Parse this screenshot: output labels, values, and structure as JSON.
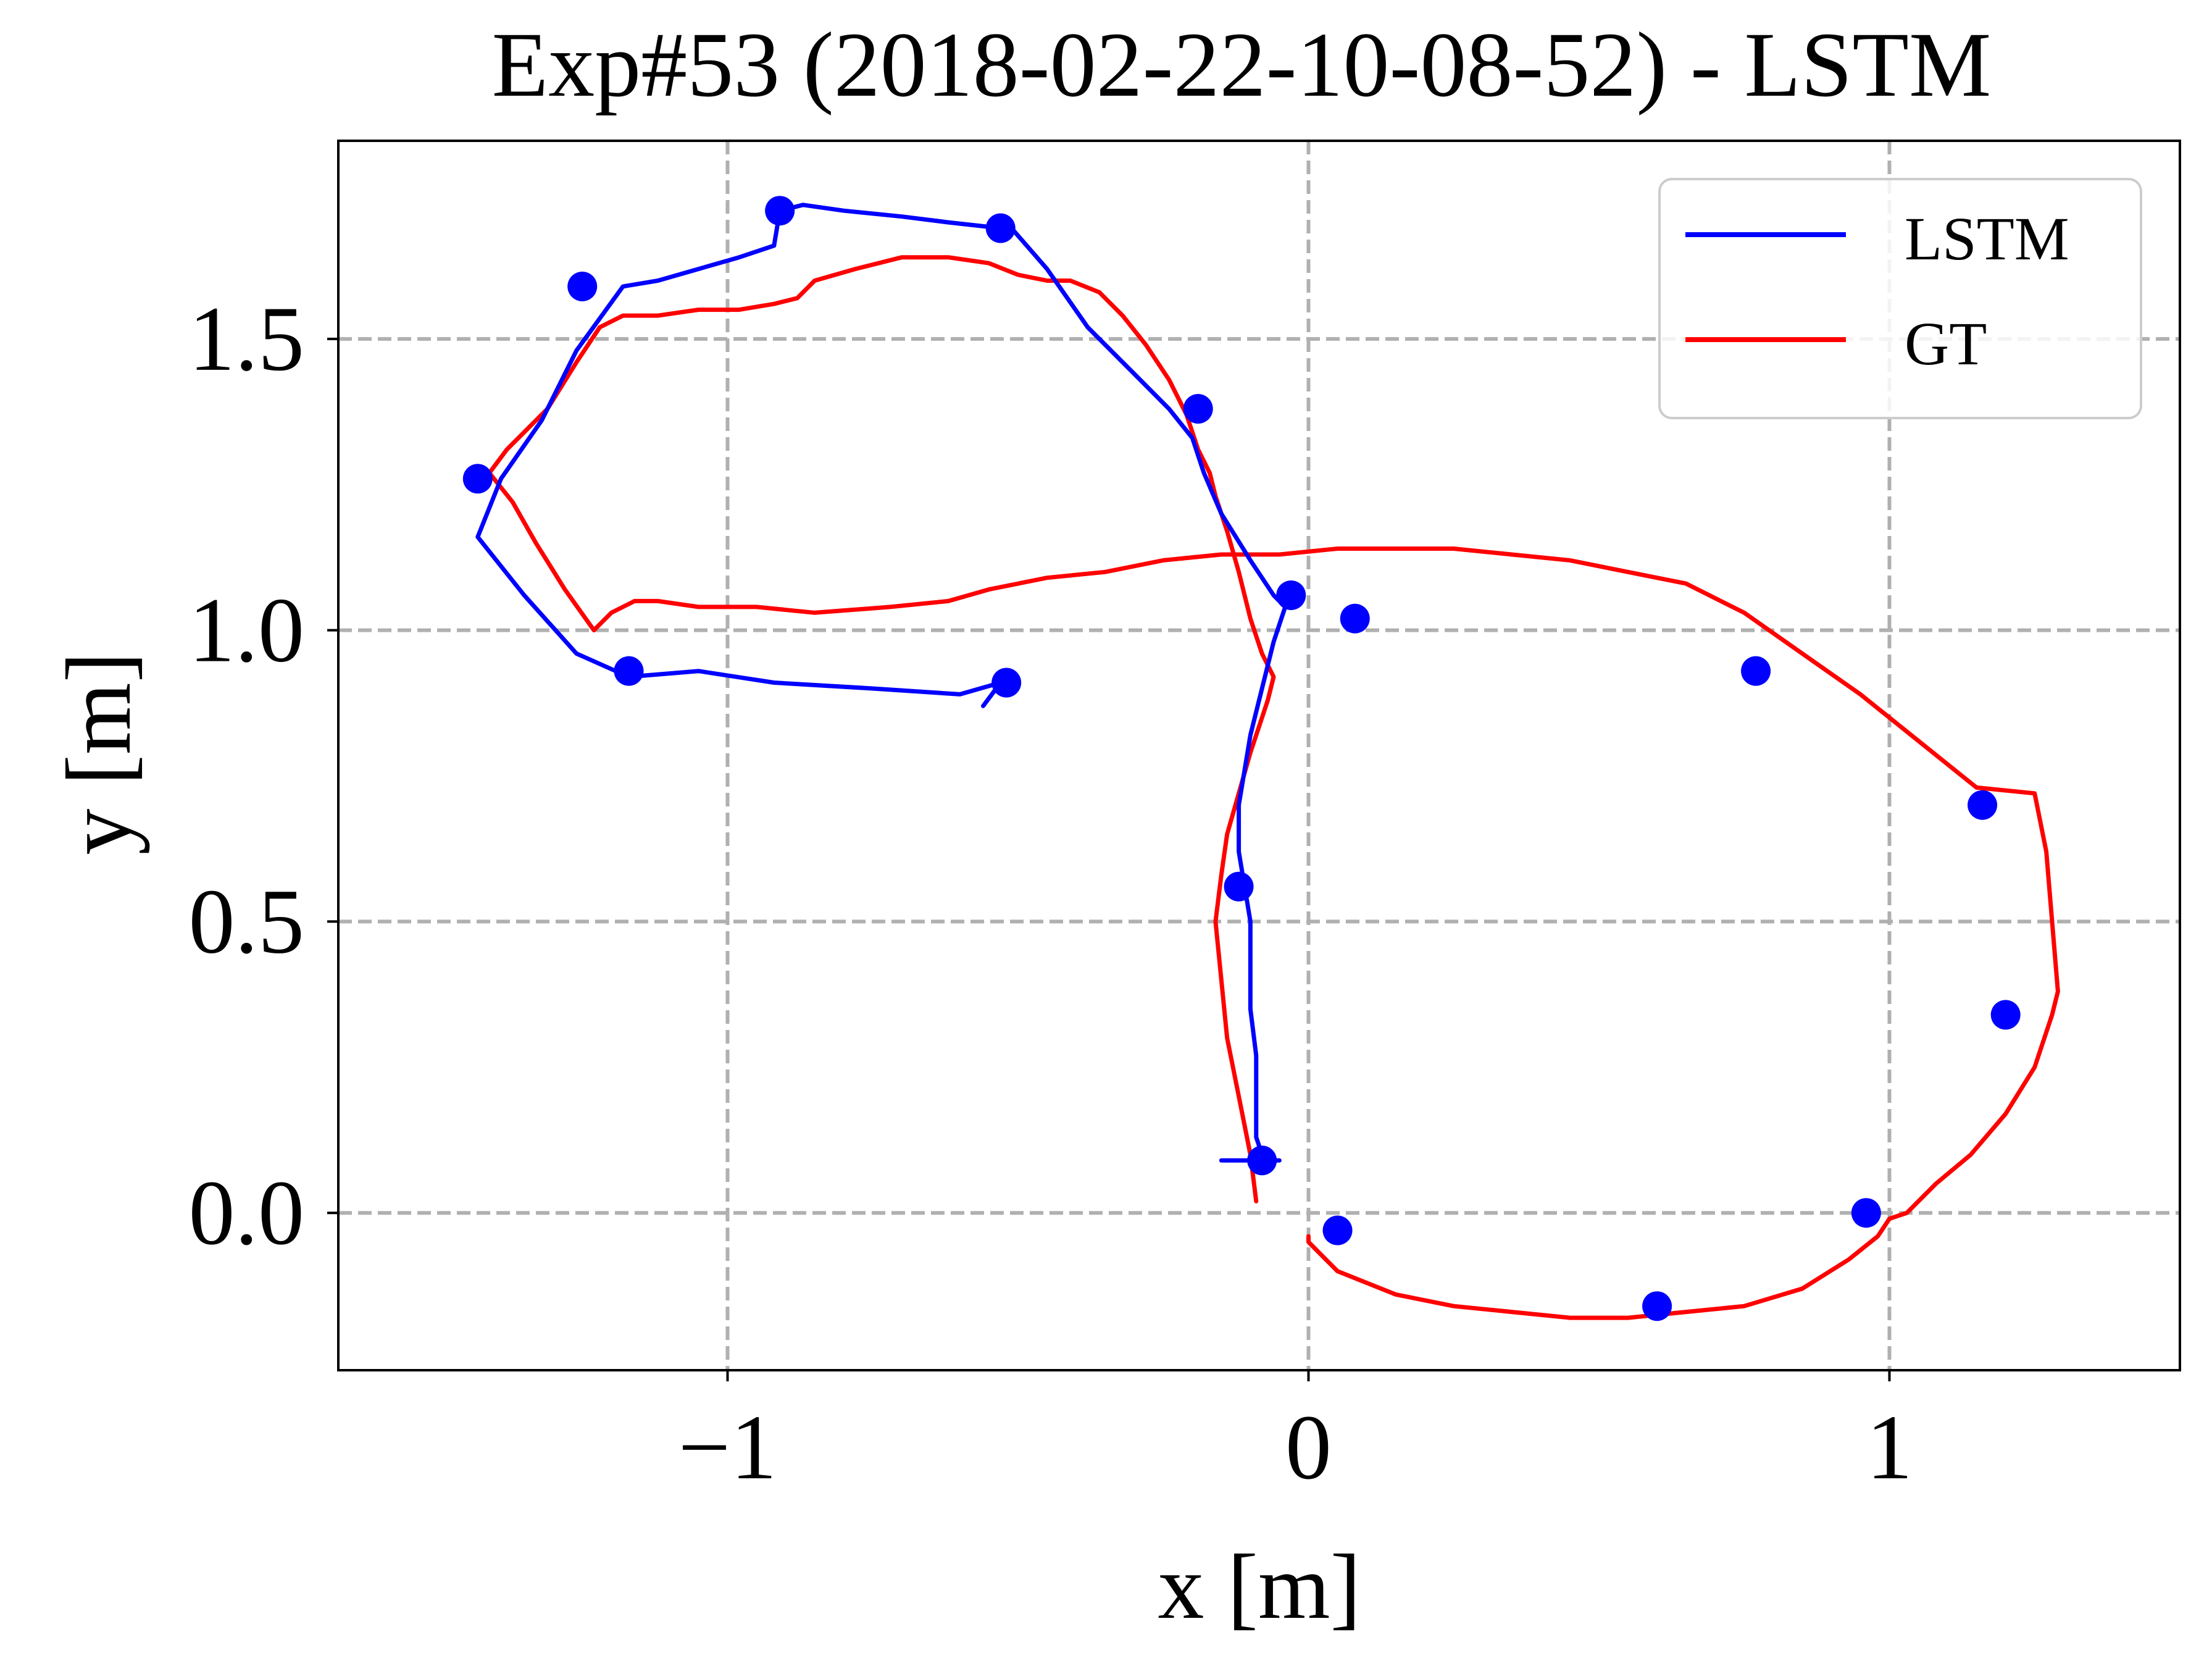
{
  "chart_data": {
    "type": "line",
    "title": "Exp#53 (2018-02-22-10-08-52) - LSTM",
    "xlabel": "x [m]",
    "ylabel": "y [m]",
    "xlim": [
      -1.67,
      1.5
    ],
    "ylim": [
      -0.27,
      1.84
    ],
    "xticks": [
      {
        "value": -1,
        "label": "−1"
      },
      {
        "value": 0,
        "label": "0"
      },
      {
        "value": 1,
        "label": "1"
      }
    ],
    "yticks": [
      {
        "value": 0.0,
        "label": "0.0"
      },
      {
        "value": 0.5,
        "label": "0.5"
      },
      {
        "value": 1.0,
        "label": "1.0"
      },
      {
        "value": 1.5,
        "label": "1.5"
      }
    ],
    "grid": true,
    "legend_position": "top-right",
    "colors": {
      "lstm": "#0000ff",
      "gt": "#ff0000",
      "grid": "#b0b0b0"
    },
    "series": [
      {
        "name": "LSTM",
        "color": "#0000ff",
        "x": [
          -0.56,
          -0.53,
          -0.6,
          -0.75,
          -0.92,
          -1.05,
          -1.17,
          -1.26,
          -1.35,
          -1.43,
          -1.39,
          -1.32,
          -1.26,
          -1.18,
          -1.12,
          -1.05,
          -0.98,
          -0.92,
          -0.91,
          -0.87,
          -0.8,
          -0.7,
          -0.62,
          -0.53,
          -0.52,
          -0.45,
          -0.38,
          -0.3,
          -0.24,
          -0.2,
          -0.18,
          -0.15,
          -0.1,
          -0.06,
          -0.04,
          -0.06,
          -0.08,
          -0.1,
          -0.11,
          -0.12,
          -0.12,
          -0.11,
          -0.1,
          -0.1,
          -0.1,
          -0.09,
          -0.09,
          -0.09,
          -0.08,
          -0.08,
          -0.09,
          -0.1,
          -0.11,
          -0.12,
          -0.13,
          -0.14,
          -0.15,
          -0.15,
          -0.14,
          -0.12,
          -0.1,
          -0.07,
          -0.06,
          -0.05,
          -0.06,
          -0.07,
          -0.08
        ],
        "y": [
          0.87,
          0.91,
          0.89,
          0.9,
          0.91,
          0.93,
          0.92,
          0.96,
          1.06,
          1.16,
          1.26,
          1.36,
          1.48,
          1.59,
          1.6,
          1.62,
          1.64,
          1.66,
          1.72,
          1.73,
          1.72,
          1.71,
          1.7,
          1.69,
          1.7,
          1.62,
          1.52,
          1.44,
          1.38,
          1.33,
          1.27,
          1.2,
          1.12,
          1.06,
          1.04,
          0.98,
          0.9,
          0.82,
          0.76,
          0.7,
          0.62,
          0.56,
          0.5,
          0.42,
          0.35,
          0.27,
          0.2,
          0.13,
          0.1,
          0.09,
          0.09,
          0.09,
          0.09,
          0.09,
          0.09,
          0.09,
          0.09,
          0.09,
          0.09,
          0.09,
          0.09,
          0.09,
          0.09,
          0.09,
          0.09,
          0.09,
          0.09
        ]
      },
      {
        "name": "GT",
        "color": "#ff0000",
        "x": [
          -0.09,
          -0.1,
          -0.12,
          -0.14,
          -0.15,
          -0.16,
          -0.15,
          -0.14,
          -0.12,
          -0.1,
          -0.08,
          -0.07,
          -0.06,
          -0.08,
          -0.1,
          -0.12,
          -0.14,
          -0.16,
          -0.17,
          -0.19,
          -0.21,
          -0.24,
          -0.28,
          -0.32,
          -0.36,
          -0.41,
          -0.45,
          -0.5,
          -0.55,
          -0.62,
          -0.7,
          -0.78,
          -0.85,
          -0.88,
          -0.92,
          -0.98,
          -1.05,
          -1.12,
          -1.18,
          -1.22,
          -1.26,
          -1.31,
          -1.38,
          -1.41,
          -1.37,
          -1.33,
          -1.28,
          -1.23,
          -1.2,
          -1.16,
          -1.12,
          -1.05,
          -0.95,
          -0.85,
          -0.72,
          -0.62,
          -0.55,
          -0.45,
          -0.35,
          -0.25,
          -0.15,
          -0.05,
          0.05,
          0.15,
          0.25,
          0.35,
          0.45,
          0.55,
          0.65,
          0.75,
          0.85,
          0.95,
          1.05,
          1.15,
          1.25,
          1.27,
          1.28,
          1.29,
          1.28,
          1.25,
          1.2,
          1.14,
          1.08,
          1.03,
          1.0,
          0.98,
          0.93,
          0.85,
          0.75,
          0.65,
          0.55,
          0.45,
          0.35,
          0.25,
          0.15,
          0.05,
          0.0,
          0.0
        ],
        "y": [
          0.02,
          0.1,
          0.2,
          0.3,
          0.4,
          0.5,
          0.58,
          0.65,
          0.72,
          0.79,
          0.85,
          0.88,
          0.92,
          0.96,
          1.02,
          1.1,
          1.17,
          1.23,
          1.27,
          1.31,
          1.37,
          1.43,
          1.49,
          1.54,
          1.58,
          1.6,
          1.6,
          1.61,
          1.63,
          1.64,
          1.64,
          1.62,
          1.6,
          1.57,
          1.56,
          1.55,
          1.55,
          1.54,
          1.54,
          1.52,
          1.46,
          1.38,
          1.31,
          1.27,
          1.22,
          1.15,
          1.07,
          1.0,
          1.03,
          1.05,
          1.05,
          1.04,
          1.04,
          1.03,
          1.04,
          1.05,
          1.07,
          1.09,
          1.1,
          1.12,
          1.13,
          1.13,
          1.14,
          1.14,
          1.14,
          1.13,
          1.12,
          1.1,
          1.08,
          1.03,
          0.96,
          0.89,
          0.81,
          0.73,
          0.72,
          0.62,
          0.5,
          0.38,
          0.34,
          0.25,
          0.17,
          0.1,
          0.05,
          0.0,
          -0.01,
          -0.04,
          -0.08,
          -0.13,
          -0.16,
          -0.17,
          -0.18,
          -0.18,
          -0.17,
          -0.16,
          -0.14,
          -0.1,
          -0.05,
          -0.04
        ]
      }
    ],
    "markers": {
      "series": "LSTM",
      "x": [
        -0.91,
        -0.53,
        -0.19,
        -0.03,
        0.08,
        0.77,
        1.16,
        1.2,
        0.96,
        0.6,
        0.05,
        -0.08,
        -0.12,
        -0.52,
        -1.17,
        -1.43,
        -1.25
      ],
      "y": [
        1.72,
        1.69,
        1.38,
        1.06,
        1.02,
        0.93,
        0.7,
        0.34,
        0.0,
        -0.16,
        -0.03,
        0.09,
        0.56,
        0.91,
        0.93,
        1.26,
        1.59
      ]
    }
  }
}
